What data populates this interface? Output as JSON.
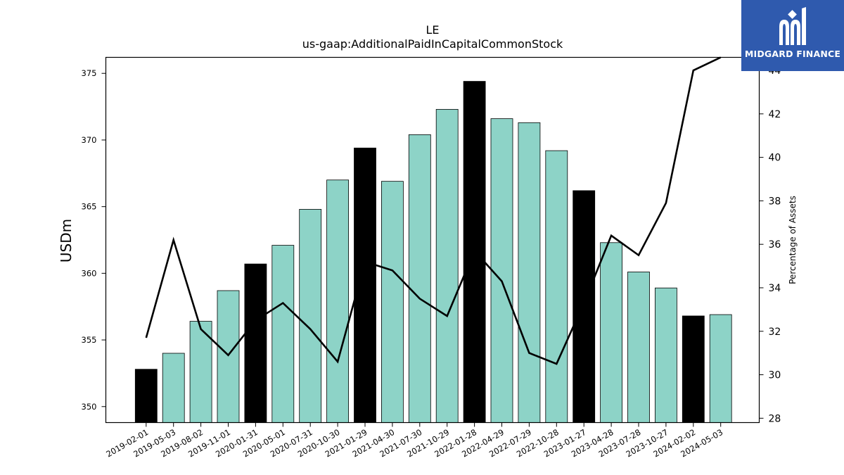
{
  "chart_data": {
    "type": "bar",
    "title": "LE",
    "subtitle": "us-gaap:AdditionalPaidInCapitalCommonStock",
    "ylabel": "USDm",
    "ylabel_right": "Percentage of Assets",
    "ylim": [
      348.8,
      376.2
    ],
    "ylim_right": [
      27.8,
      44.6
    ],
    "yticks": [
      350,
      355,
      360,
      365,
      370,
      375
    ],
    "yticks_right": [
      28,
      30,
      32,
      34,
      36,
      38,
      40,
      42,
      44
    ],
    "categories": [
      "2019-02-01",
      "2019-05-03",
      "2019-08-02",
      "2019-11-01",
      "2020-01-31",
      "2020-05-01",
      "2020-07-31",
      "2020-10-30",
      "2021-01-29",
      "2021-04-30",
      "2021-07-30",
      "2021-10-29",
      "2022-01-28",
      "2022-04-29",
      "2022-07-29",
      "2022-10-28",
      "2023-01-27",
      "2023-04-28",
      "2023-07-28",
      "2023-10-27",
      "2024-02-02",
      "2024-05-03"
    ],
    "series": [
      {
        "kind": "bar",
        "values": [
          352.8,
          354.0,
          356.4,
          358.7,
          360.7,
          362.1,
          364.8,
          367.0,
          369.4,
          366.9,
          370.4,
          372.3,
          374.4,
          371.6,
          371.3,
          369.2,
          366.2,
          362.3,
          360.1,
          358.9,
          356.8,
          356.9
        ]
      },
      {
        "kind": "line",
        "axis": "right",
        "values": [
          31.7,
          36.2,
          32.1,
          30.9,
          32.5,
          33.3,
          32.1,
          30.6,
          35.2,
          34.8,
          33.5,
          32.7,
          35.7,
          34.3,
          31.0,
          30.5,
          33.3,
          36.4,
          35.5,
          37.9,
          44.0,
          44.6
        ]
      }
    ],
    "fiscal_year_end_flags": [
      true,
      false,
      false,
      false,
      true,
      false,
      false,
      false,
      true,
      false,
      false,
      false,
      true,
      false,
      false,
      false,
      true,
      false,
      false,
      false,
      true,
      false
    ],
    "colors": {
      "bar": "#8dd3c7",
      "bar_highlight": "#000000",
      "line": "#000000"
    },
    "grid": false,
    "legend": "none"
  },
  "logo": {
    "text": "MIDGARD FINANCE",
    "background": "#2f5aae"
  }
}
